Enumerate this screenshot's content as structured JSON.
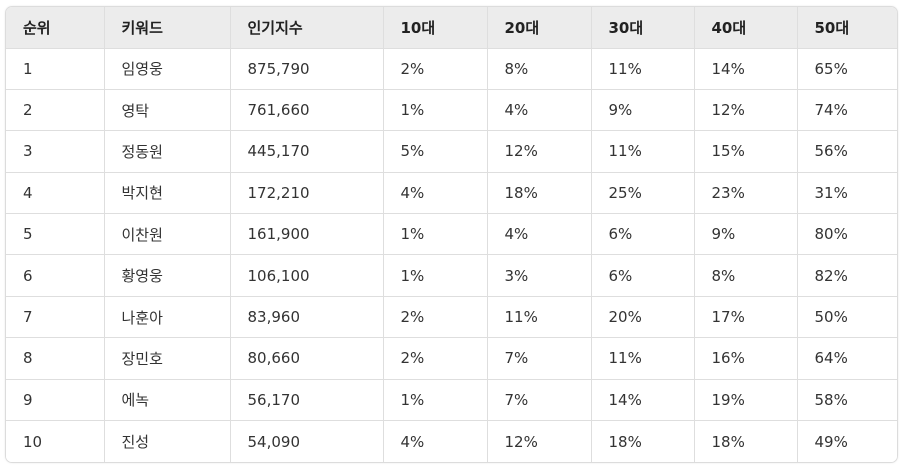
{
  "table": {
    "headers": [
      "순위",
      "키워드",
      "인기지수",
      "10대",
      "20대",
      "30대",
      "40대",
      "50대"
    ],
    "rows": [
      [
        "1",
        "임영웅",
        "875,790",
        "2%",
        "8%",
        "11%",
        "14%",
        "65%"
      ],
      [
        "2",
        "영탁",
        "761,660",
        "1%",
        "4%",
        "9%",
        "12%",
        "74%"
      ],
      [
        "3",
        "정동원",
        "445,170",
        "5%",
        "12%",
        "11%",
        "15%",
        "56%"
      ],
      [
        "4",
        "박지현",
        "172,210",
        "4%",
        "18%",
        "25%",
        "23%",
        "31%"
      ],
      [
        "5",
        "이찬원",
        "161,900",
        "1%",
        "4%",
        "6%",
        "9%",
        "80%"
      ],
      [
        "6",
        "황영웅",
        "106,100",
        "1%",
        "3%",
        "6%",
        "8%",
        "82%"
      ],
      [
        "7",
        "나훈아",
        "83,960",
        "2%",
        "11%",
        "20%",
        "17%",
        "50%"
      ],
      [
        "8",
        "장민호",
        "80,660",
        "2%",
        "7%",
        "11%",
        "16%",
        "64%"
      ],
      [
        "9",
        "에녹",
        "56,170",
        "1%",
        "7%",
        "14%",
        "19%",
        "58%"
      ],
      [
        "10",
        "진성",
        "54,090",
        "4%",
        "12%",
        "18%",
        "18%",
        "49%"
      ]
    ]
  },
  "colors": {
    "header_bg": "#ececec",
    "border": "#dedede",
    "text": "#333333"
  }
}
